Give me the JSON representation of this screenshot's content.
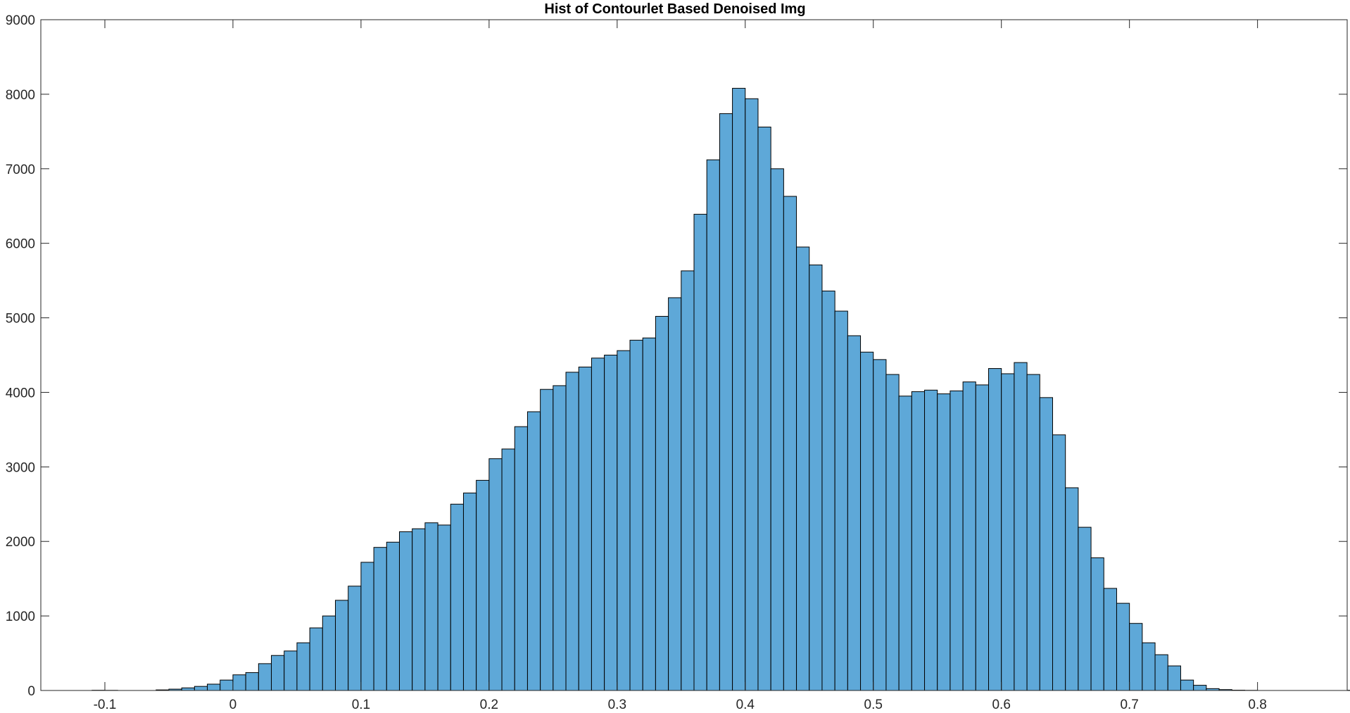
{
  "chart_data": {
    "type": "bar",
    "title": "Hist of Contourlet Based Denoised Img",
    "xlabel": "",
    "ylabel": "",
    "xlim": [
      -0.15,
      0.87
    ],
    "ylim": [
      0,
      9000
    ],
    "xticks": [
      "-0.1",
      "0",
      "0.1",
      "0.2",
      "0.3",
      "0.4",
      "0.5",
      "0.6",
      "0.7",
      "0.8"
    ],
    "yticks": [
      "0",
      "1000",
      "2000",
      "3000",
      "4000",
      "5000",
      "6000",
      "7000",
      "8000",
      "9000"
    ],
    "grid": false,
    "bar_color": "#5ea8d8",
    "edge_color": "#000000",
    "bin_start": -0.11,
    "bin_width": 0.01,
    "values": [
      3,
      2,
      0,
      0,
      0,
      8,
      18,
      35,
      55,
      85,
      140,
      210,
      240,
      360,
      470,
      530,
      640,
      840,
      1000,
      1210,
      1400,
      1720,
      1920,
      1990,
      2130,
      2170,
      2250,
      2220,
      2500,
      2650,
      2820,
      3110,
      3240,
      3540,
      3740,
      4040,
      4090,
      4270,
      4340,
      4460,
      4500,
      4560,
      4700,
      4730,
      5020,
      5270,
      5630,
      6390,
      7120,
      7740,
      8080,
      7940,
      7560,
      7000,
      6630,
      5950,
      5710,
      5360,
      5090,
      4760,
      4540,
      4440,
      4240,
      3950,
      4010,
      4030,
      3980,
      4020,
      4140,
      4100,
      4320,
      4250,
      4400,
      4240,
      3930,
      3430,
      2720,
      2190,
      1780,
      1370,
      1170,
      900,
      640,
      480,
      330,
      140,
      70,
      25,
      12,
      4,
      2,
      0,
      0,
      0,
      0,
      0,
      0,
      0,
      2,
      1,
      1,
      1
    ]
  }
}
